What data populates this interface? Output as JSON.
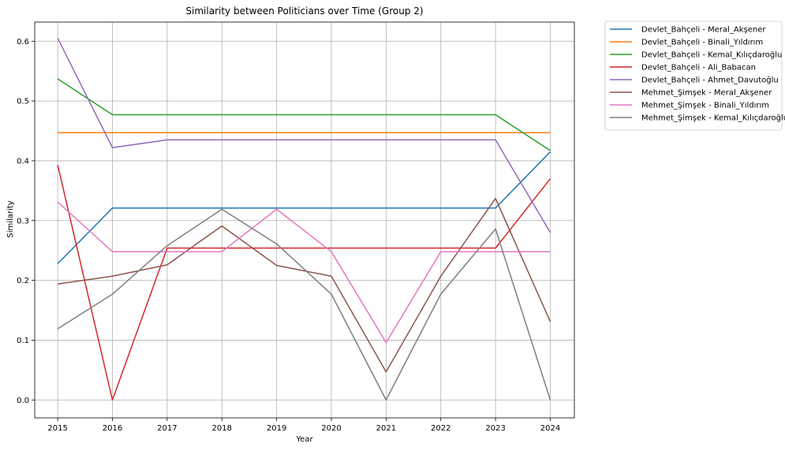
{
  "chart_data": {
    "type": "line",
    "title": "Similarity between Politicians over Time (Group 2)",
    "xlabel": "Year",
    "ylabel": "Similarity",
    "x": [
      2015,
      2016,
      2017,
      2018,
      2019,
      2020,
      2021,
      2022,
      2023,
      2024
    ],
    "xlim": [
      2014.58,
      2024.44
    ],
    "ylim": [
      -0.03,
      0.632
    ],
    "yticks": [
      "0.0",
      "0.1",
      "0.2",
      "0.3",
      "0.4",
      "0.5",
      "0.6"
    ],
    "ytick_values": [
      0.0,
      0.1,
      0.2,
      0.3,
      0.4,
      0.5,
      0.6
    ],
    "grid": true,
    "legend_position": "outside-top-right",
    "series": [
      {
        "name": "Devlet_Bahçeli - Meral_Akşener",
        "color": "#1f77b4",
        "values": [
          0.228,
          0.321,
          0.321,
          0.321,
          0.321,
          0.321,
          0.321,
          0.321,
          0.321,
          0.415
        ]
      },
      {
        "name": "Devlet_Bahçeli - Binali_Yıldırım",
        "color": "#ff7f0e",
        "values": [
          0.447,
          0.447,
          0.447,
          0.447,
          0.447,
          0.447,
          0.447,
          0.447,
          0.447,
          0.447
        ]
      },
      {
        "name": "Devlet_Bahçeli - Kemal_Kılıçdaroğlu",
        "color": "#2ca02c",
        "values": [
          0.537,
          0.477,
          0.477,
          0.477,
          0.477,
          0.477,
          0.477,
          0.477,
          0.477,
          0.417
        ]
      },
      {
        "name": "Devlet_Bahçeli - Ali_Babacan",
        "color": "#d62728",
        "values": [
          0.393,
          0.0,
          0.254,
          0.254,
          0.254,
          0.254,
          0.254,
          0.254,
          0.254,
          0.37
        ]
      },
      {
        "name": "Devlet_Bahçeli - Ahmet_Davutoğlu",
        "color": "#9467bd",
        "values": [
          0.605,
          0.422,
          0.435,
          0.435,
          0.435,
          0.435,
          0.435,
          0.435,
          0.435,
          0.28
        ]
      },
      {
        "name": "Mehmet_Şimşek - Meral_Akşener",
        "color": "#8c564b",
        "values": [
          0.194,
          0.207,
          0.226,
          0.291,
          0.225,
          0.207,
          0.047,
          0.207,
          0.337,
          0.131
        ]
      },
      {
        "name": "Mehmet_Şimşek - Binali_Yıldırım",
        "color": "#e377c2",
        "values": [
          0.331,
          0.248,
          0.248,
          0.248,
          0.319,
          0.248,
          0.096,
          0.248,
          0.248,
          0.248
        ]
      },
      {
        "name": "Mehmet_Şimşek - Kemal_Kılıçdaroğlu",
        "color": "#7f7f7f",
        "values": [
          0.119,
          0.177,
          0.258,
          0.319,
          0.261,
          0.177,
          0.0,
          0.177,
          0.286,
          0.0
        ]
      }
    ]
  }
}
